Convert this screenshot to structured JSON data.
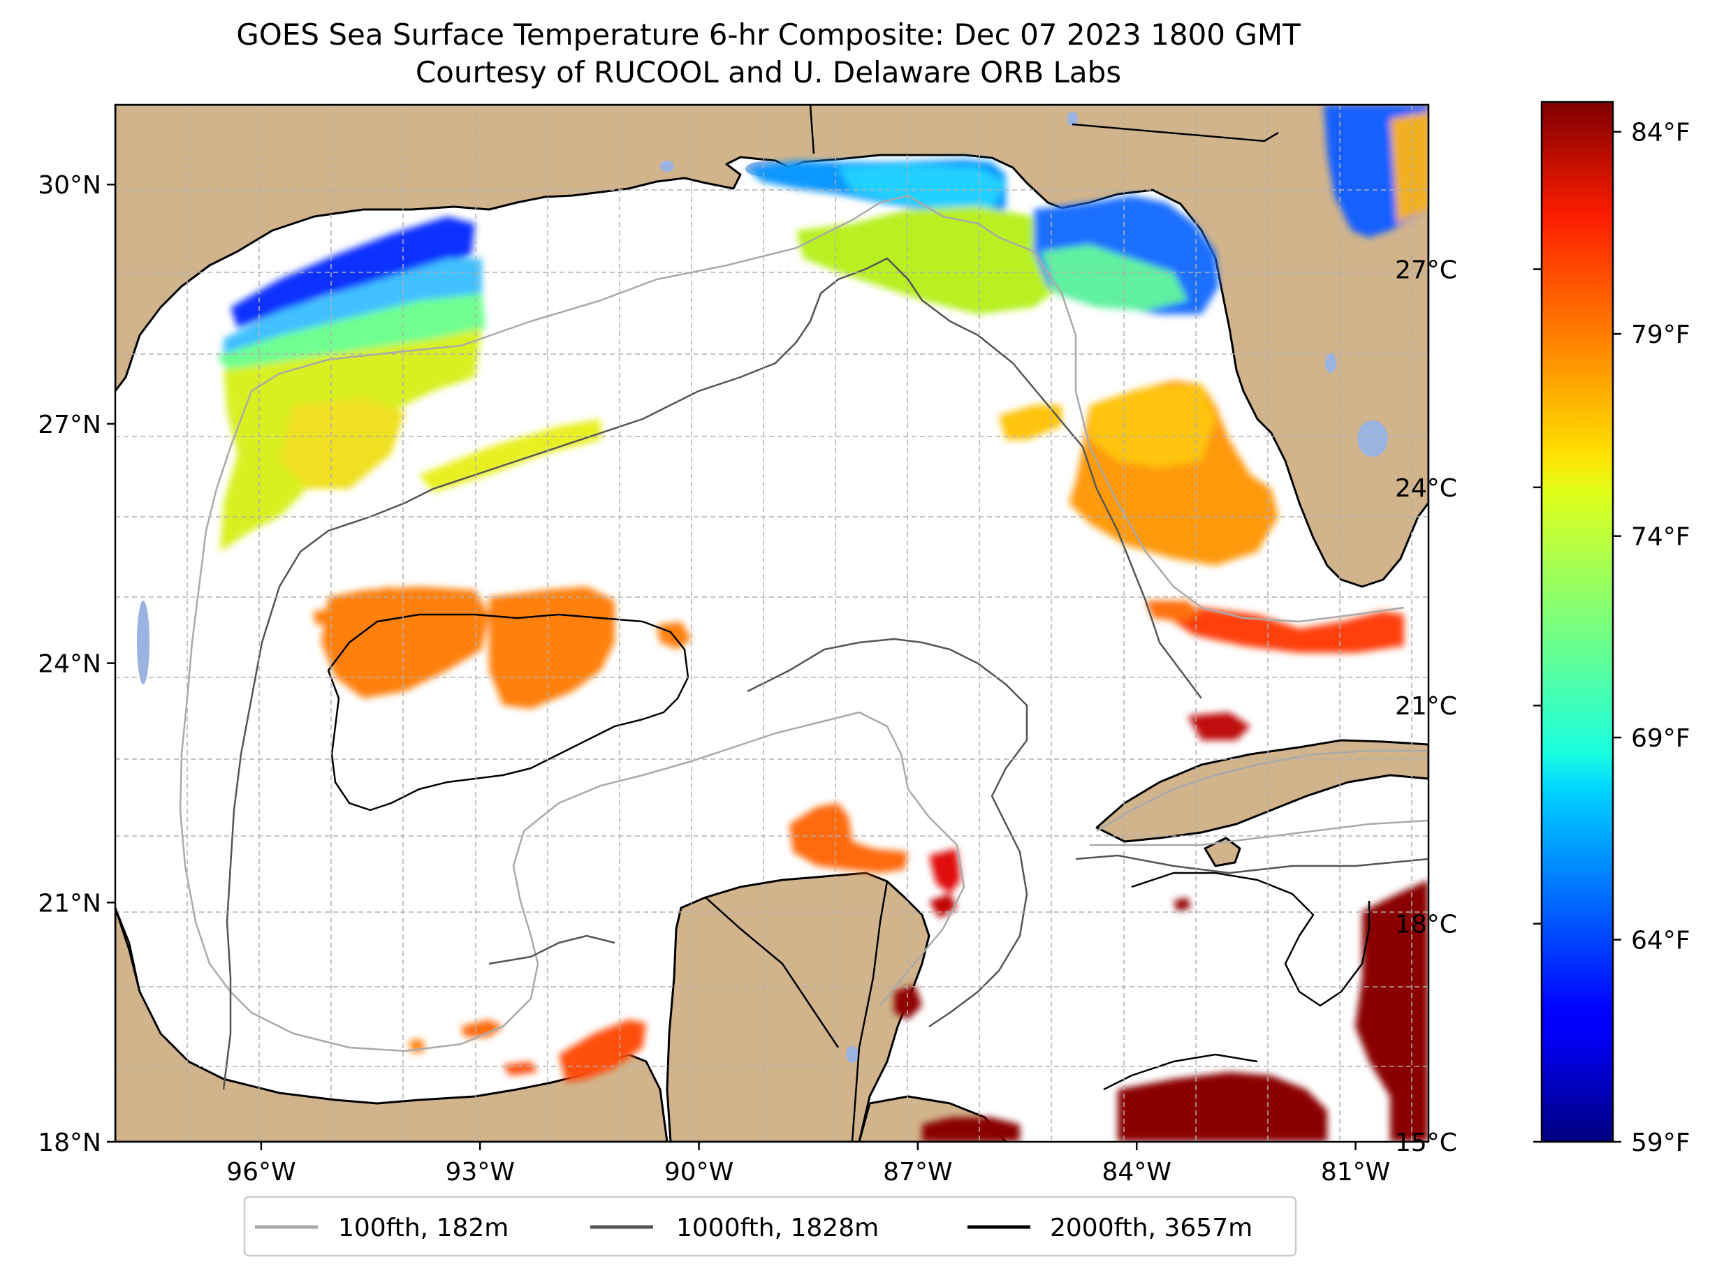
{
  "title": {
    "line1": "GOES Sea Surface Temperature 6-hr Composite: Dec 07 2023 1800 GMT",
    "line2": "Courtesy of RUCOOL and U. Delaware ORB Labs"
  },
  "map": {
    "lon_range": [
      -98,
      -80
    ],
    "lat_range": [
      18,
      31
    ],
    "lon_ticks": [
      {
        "value": -96,
        "label": "96°W"
      },
      {
        "value": -93,
        "label": "93°W"
      },
      {
        "value": -90,
        "label": "90°W"
      },
      {
        "value": -87,
        "label": "87°W"
      },
      {
        "value": -84,
        "label": "84°W"
      },
      {
        "value": -81,
        "label": "81°W"
      }
    ],
    "lat_ticks": [
      {
        "value": 18,
        "label": "18°N"
      },
      {
        "value": 21,
        "label": "21°N"
      },
      {
        "value": 24,
        "label": "24°N"
      },
      {
        "value": 27,
        "label": "27°N"
      },
      {
        "value": 30,
        "label": "30°N"
      }
    ],
    "grid": true,
    "colors": {
      "land": "#d2b48c",
      "water_bodies": "#9ab3e0",
      "grid": "#b0b0b0",
      "contour_100fth": "#a9a9a9",
      "contour_1000fth": "#545454",
      "contour_2000fth": "#000000"
    }
  },
  "legend": {
    "placement": "bottom-center",
    "items": [
      {
        "label": "100fth, 182m",
        "color": "#a9a9a9"
      },
      {
        "label": "1000fth, 1828m",
        "color": "#545454"
      },
      {
        "label": "2000fth, 3657m",
        "color": "#000000"
      }
    ]
  },
  "colorbar": {
    "colormap": "jet",
    "range_c": [
      15,
      29.3
    ],
    "celsius_ticks": [
      {
        "value": 15,
        "label": "15°C"
      },
      {
        "value": 18,
        "label": "18°C"
      },
      {
        "value": 21,
        "label": "21°C"
      },
      {
        "value": 24,
        "label": "24°C"
      },
      {
        "value": 27,
        "label": "27°C"
      }
    ],
    "fahrenheit_ticks": [
      {
        "value": 15,
        "label": "59°F"
      },
      {
        "value": 17.78,
        "label": "64°F"
      },
      {
        "value": 20.56,
        "label": "69°F"
      },
      {
        "value": 23.33,
        "label": "74°F"
      },
      {
        "value": 26.11,
        "label": "79°F"
      },
      {
        "value": 28.89,
        "label": "84°F"
      }
    ]
  }
}
